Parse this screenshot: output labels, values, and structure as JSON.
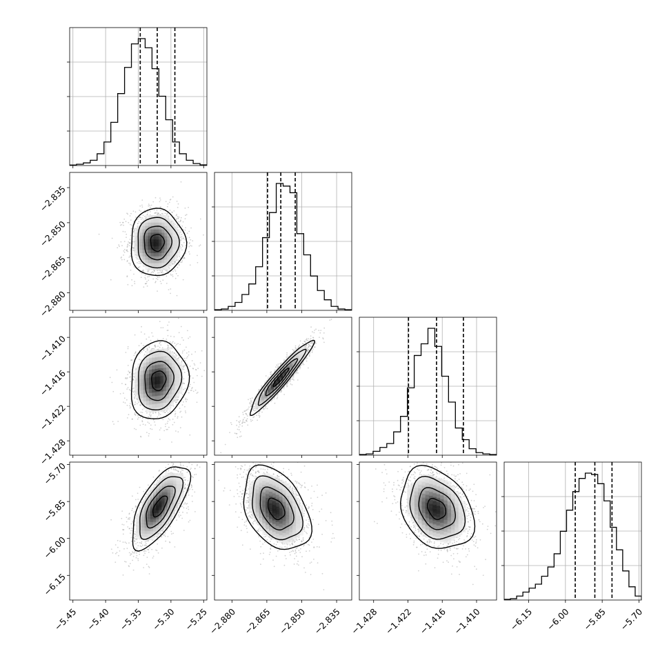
{
  "chart_data": {
    "type": "corner",
    "grid": true,
    "parameters": [
      {
        "range": [
          -5.455,
          -5.245
        ],
        "ticks": [
          -5.45,
          -5.4,
          -5.35,
          -5.3,
          -5.25
        ],
        "tick_labels": [
          "−5.45",
          "−5.40",
          "−5.35",
          "−5.30",
          "−5.25"
        ],
        "quantiles": [
          -5.347,
          -5.321,
          -5.294
        ],
        "hist": [
          0.004,
          0.01,
          0.02,
          0.04,
          0.09,
          0.18,
          0.33,
          0.55,
          0.75,
          0.93,
          0.97,
          0.9,
          0.74,
          0.53,
          0.35,
          0.18,
          0.09,
          0.04,
          0.015,
          0.005
        ]
      },
      {
        "range": [
          -2.8875,
          -2.8285
        ],
        "ticks": [
          -2.88,
          -2.865,
          -2.85,
          -2.835
        ],
        "tick_labels": [
          "−2.880",
          "−2.865",
          "−2.850",
          "−2.835"
        ],
        "quantiles": [
          -2.8647,
          -2.859,
          -2.8528
        ],
        "hist": [
          0.005,
          0.01,
          0.03,
          0.06,
          0.12,
          0.2,
          0.33,
          0.55,
          0.74,
          0.96,
          0.94,
          0.89,
          0.58,
          0.42,
          0.26,
          0.15,
          0.08,
          0.03,
          0.01,
          0.005
        ]
      },
      {
        "range": [
          -1.4305,
          -1.4065
        ],
        "ticks": [
          -1.428,
          -1.422,
          -1.416,
          -1.41
        ],
        "tick_labels": [
          "−1.428",
          "−1.422",
          "−1.416",
          "−1.410"
        ],
        "quantiles": [
          -1.4219,
          -1.417,
          -1.4123
        ],
        "hist": [
          0.005,
          0.01,
          0.03,
          0.06,
          0.09,
          0.18,
          0.3,
          0.52,
          0.77,
          0.86,
          0.98,
          0.84,
          0.61,
          0.41,
          0.21,
          0.12,
          0.05,
          0.02,
          0.01,
          0.005
        ]
      },
      {
        "range": [
          -6.25,
          -5.69
        ],
        "ticks": [
          -6.15,
          -6.0,
          -5.85,
          -5.7
        ],
        "tick_labels": [
          "−6.15",
          "−6.00",
          "−5.85",
          "−5.70"
        ],
        "quantiles": [
          -5.96,
          -5.88,
          -5.81
        ],
        "hist": [
          0.005,
          0.01,
          0.03,
          0.06,
          0.09,
          0.12,
          0.18,
          0.25,
          0.35,
          0.52,
          0.68,
          0.82,
          0.92,
          0.96,
          0.95,
          0.88,
          0.75,
          0.55,
          0.38,
          0.22,
          0.1,
          0.03
        ]
      }
    ],
    "pairs": [
      {
        "x": 0,
        "y": 1,
        "center": [
          -5.321,
          -2.8585
        ],
        "sigma": [
          0.021,
          0.0072
        ],
        "rho": 0.0
      },
      {
        "x": 0,
        "y": 2,
        "center": [
          -5.319,
          -1.4175
        ],
        "sigma": [
          0.022,
          0.0034
        ],
        "rho": 0.1
      },
      {
        "x": 1,
        "y": 2,
        "center": [
          -2.859,
          -1.417
        ],
        "sigma": [
          0.0068,
          0.0032
        ],
        "rho": 0.95
      },
      {
        "x": 0,
        "y": 3,
        "center": [
          -5.317,
          -5.87
        ],
        "sigma": [
          0.022,
          0.085
        ],
        "rho": 0.68
      },
      {
        "x": 1,
        "y": 3,
        "center": [
          -2.861,
          -5.88
        ],
        "sigma": [
          0.0072,
          0.085
        ],
        "rho": -0.38
      },
      {
        "x": 2,
        "y": 3,
        "center": [
          -1.417,
          -5.88
        ],
        "sigma": [
          0.0032,
          0.083
        ],
        "rho": -0.28
      }
    ],
    "contour_levels_sigma": [
      0.5,
      1.0,
      1.5,
      2.0
    ]
  }
}
